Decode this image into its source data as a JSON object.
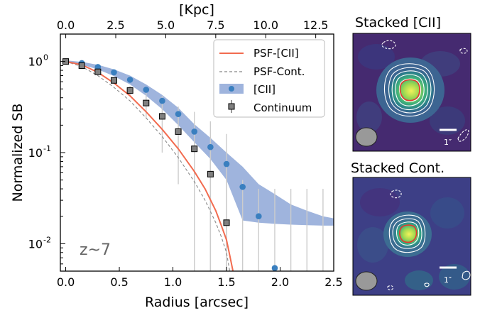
{
  "chart_data": [
    {
      "type": "scatter",
      "xlabel": "Radius [arcsec]",
      "ylabel": "Normalized SB",
      "top_xlabel": "[Kpc]",
      "xlim": [
        -0.05,
        2.5
      ],
      "ylim": [
        0.005,
        2.0
      ],
      "yscale": "log",
      "top_xlim_kpc": [
        -0.27,
        13.4
      ],
      "x_ticks": [
        "0.0",
        "0.5",
        "1.0",
        "1.5",
        "2.0",
        "2.5"
      ],
      "x_tick_values": [
        0.0,
        0.5,
        1.0,
        1.5,
        2.0,
        2.5
      ],
      "top_ticks": [
        "0.0",
        "2.5",
        "5.0",
        "7.5",
        "10.0",
        "12.5"
      ],
      "top_tick_values": [
        0.0,
        2.5,
        5.0,
        7.5,
        10.0,
        12.5
      ],
      "y_tick_values": [
        0.01,
        0.1,
        1
      ],
      "y_tick_exponents": [
        "-2",
        "-1",
        "0"
      ],
      "y_tick_base": "10",
      "legend": [
        "PSF-[CII]",
        "PSF-Cont.",
        "[CII]",
        "Continuum"
      ],
      "legend_position": "upper-right",
      "annotation": "z~7",
      "colors": {
        "psf_cii": "#f26b4f",
        "psf_cont": "#888888",
        "band": "#9fb4dd",
        "cii_points": "#3a7fbf",
        "continuum_points": "#808080",
        "errorbars": "#cccccc"
      },
      "series": [
        {
          "name": "[CII]",
          "kind": "points",
          "x": [
            0.0,
            0.15,
            0.3,
            0.45,
            0.6,
            0.75,
            0.9,
            1.05,
            1.2,
            1.35,
            1.5,
            1.65,
            1.8,
            1.95
          ],
          "y": [
            1.0,
            0.96,
            0.87,
            0.76,
            0.63,
            0.49,
            0.37,
            0.265,
            0.17,
            0.115,
            0.075,
            0.042,
            0.02,
            0.0054
          ]
        },
        {
          "name": "[CII]",
          "kind": "band",
          "x": [
            0.0,
            0.15,
            0.3,
            0.45,
            0.6,
            0.75,
            0.9,
            1.05,
            1.2,
            1.35,
            1.5,
            1.65,
            1.8,
            1.95,
            2.1,
            2.25,
            2.4,
            2.5
          ],
          "upper": [
            1.03,
            0.99,
            0.92,
            0.82,
            0.7,
            0.56,
            0.43,
            0.31,
            0.205,
            0.145,
            0.1,
            0.07,
            0.045,
            0.035,
            0.027,
            0.023,
            0.02,
            0.019
          ],
          "lower": [
            0.97,
            0.92,
            0.82,
            0.69,
            0.56,
            0.42,
            0.3,
            0.2,
            0.13,
            0.085,
            0.05,
            0.018,
            0.017,
            0.0165,
            0.0162,
            0.016,
            0.0158,
            0.0158
          ]
        },
        {
          "name": "Continuum",
          "kind": "points",
          "x": [
            0.0,
            0.15,
            0.3,
            0.45,
            0.6,
            0.75,
            0.9,
            1.05,
            1.2,
            1.35,
            1.5
          ],
          "y": [
            1.0,
            0.9,
            0.77,
            0.62,
            0.48,
            0.35,
            0.25,
            0.17,
            0.11,
            0.058,
            0.017
          ],
          "err_low": [
            0.98,
            0.87,
            0.73,
            0.57,
            0.42,
            0.24,
            0.1,
            0.045,
            0.005,
            0.005,
            0.005
          ],
          "err_high": [
            1.02,
            0.93,
            0.81,
            0.67,
            0.54,
            0.45,
            0.42,
            0.32,
            0.28,
            0.22,
            0.16
          ]
        },
        {
          "name": "PSF-[CII]",
          "kind": "line",
          "x": [
            0.0,
            0.15,
            0.3,
            0.45,
            0.6,
            0.75,
            0.9,
            1.05,
            1.2,
            1.3,
            1.4,
            1.45,
            1.5,
            1.53,
            1.56
          ],
          "y": [
            1.0,
            0.92,
            0.76,
            0.58,
            0.42,
            0.28,
            0.18,
            0.11,
            0.062,
            0.04,
            0.023,
            0.016,
            0.011,
            0.0075,
            0.005
          ]
        },
        {
          "name": "PSF-Cont.",
          "kind": "line",
          "x": [
            0.0,
            0.15,
            0.3,
            0.45,
            0.6,
            0.75,
            0.9,
            1.05,
            1.2,
            1.3,
            1.4,
            1.45,
            1.5,
            1.53
          ],
          "y": [
            1.0,
            0.88,
            0.7,
            0.52,
            0.37,
            0.24,
            0.15,
            0.088,
            0.048,
            0.03,
            0.017,
            0.012,
            0.008,
            0.005
          ]
        },
        {
          "name": "error-bars",
          "kind": "errbars",
          "x": [
            1.2,
            1.35,
            1.5,
            1.65,
            1.8,
            1.95,
            2.1,
            2.25,
            2.4
          ],
          "top": [
            0.16,
            0.11,
            0.075,
            0.05,
            0.04,
            0.04,
            0.04,
            0.04,
            0.04
          ]
        }
      ]
    },
    {
      "type": "image",
      "title": "Stacked [CII]",
      "scale_label": "1″"
    },
    {
      "type": "image",
      "title": "Stacked Cont.",
      "scale_label": "1″"
    }
  ]
}
